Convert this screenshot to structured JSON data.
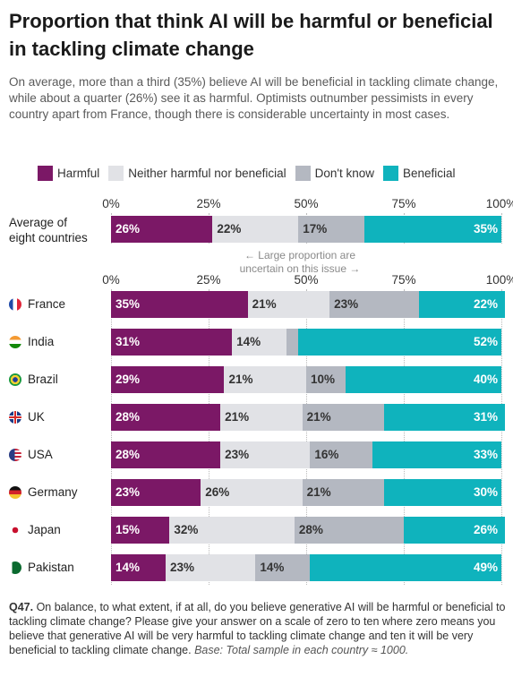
{
  "title": "Proportion that think AI will be harmful or beneficial in tackling climate change",
  "subtitle": "On average, more than a third (35%) believe AI will be beneficial in tackling climate change, while about a quarter (26%) see it as harmful. Optimists outnumber pessimists in every country apart from France, though there is considerable uncertainty in most cases.",
  "colors": {
    "harmful": "#7b1866",
    "neither": "#e1e2e6",
    "dont_know": "#b4b8c1",
    "beneficial": "#0fb3bd"
  },
  "annotation": {
    "line1": "← Large proportion are",
    "line2": "uncertain on this issue →"
  },
  "footnote": {
    "q": "Q47.",
    "text": " On balance, to what extent, if at all, do you believe generative AI will be harmful or beneficial to tackling climate change? Please give your answer on a scale of zero to ten where zero means you believe that generative AI will be very harmful to tackling climate change and ten it will be very beneficial to tackling climate change. ",
    "base": "Base: Total sample in each country ≈ 1000."
  },
  "chart_data": {
    "type": "bar",
    "orientation": "horizontal",
    "stacked": true,
    "xlim": [
      0,
      100
    ],
    "ticks": [
      "0%",
      "25%",
      "50%",
      "75%",
      "100%"
    ],
    "legend_position": "top",
    "series": [
      {
        "name": "Harmful",
        "key": "harmful"
      },
      {
        "name": "Neither harmful nor beneficial",
        "key": "neither"
      },
      {
        "name": "Don't know",
        "key": "dont_know"
      },
      {
        "name": "Beneficial",
        "key": "beneficial"
      }
    ],
    "average": {
      "label_line1": "Average of",
      "label_line2": "eight countries",
      "values": [
        26,
        22,
        17,
        35
      ],
      "labels": [
        "26%",
        "22%",
        "17%",
        "35%"
      ]
    },
    "countries": [
      {
        "name": "France",
        "flag": "fr",
        "values": [
          35,
          21,
          23,
          22
        ],
        "labels": [
          "35%",
          "21%",
          "23%",
          "22%"
        ]
      },
      {
        "name": "India",
        "flag": "in",
        "values": [
          31,
          14,
          3,
          52
        ],
        "labels": [
          "31%",
          "14%",
          "",
          "52%"
        ]
      },
      {
        "name": "Brazil",
        "flag": "br",
        "values": [
          29,
          21,
          10,
          40
        ],
        "labels": [
          "29%",
          "21%",
          "10%",
          "40%"
        ]
      },
      {
        "name": "UK",
        "flag": "uk",
        "values": [
          28,
          21,
          21,
          31
        ],
        "labels": [
          "28%",
          "21%",
          "21%",
          "31%"
        ]
      },
      {
        "name": "USA",
        "flag": "us",
        "values": [
          28,
          23,
          16,
          33
        ],
        "labels": [
          "28%",
          "23%",
          "16%",
          "33%"
        ]
      },
      {
        "name": "Germany",
        "flag": "de",
        "values": [
          23,
          26,
          21,
          30
        ],
        "labels": [
          "23%",
          "26%",
          "21%",
          "30%"
        ]
      },
      {
        "name": "Japan",
        "flag": "jp",
        "values": [
          15,
          32,
          28,
          26
        ],
        "labels": [
          "15%",
          "32%",
          "28%",
          "26%"
        ]
      },
      {
        "name": "Pakistan",
        "flag": "pk",
        "values": [
          14,
          23,
          14,
          49
        ],
        "labels": [
          "14%",
          "23%",
          "14%",
          "49%"
        ]
      }
    ]
  }
}
